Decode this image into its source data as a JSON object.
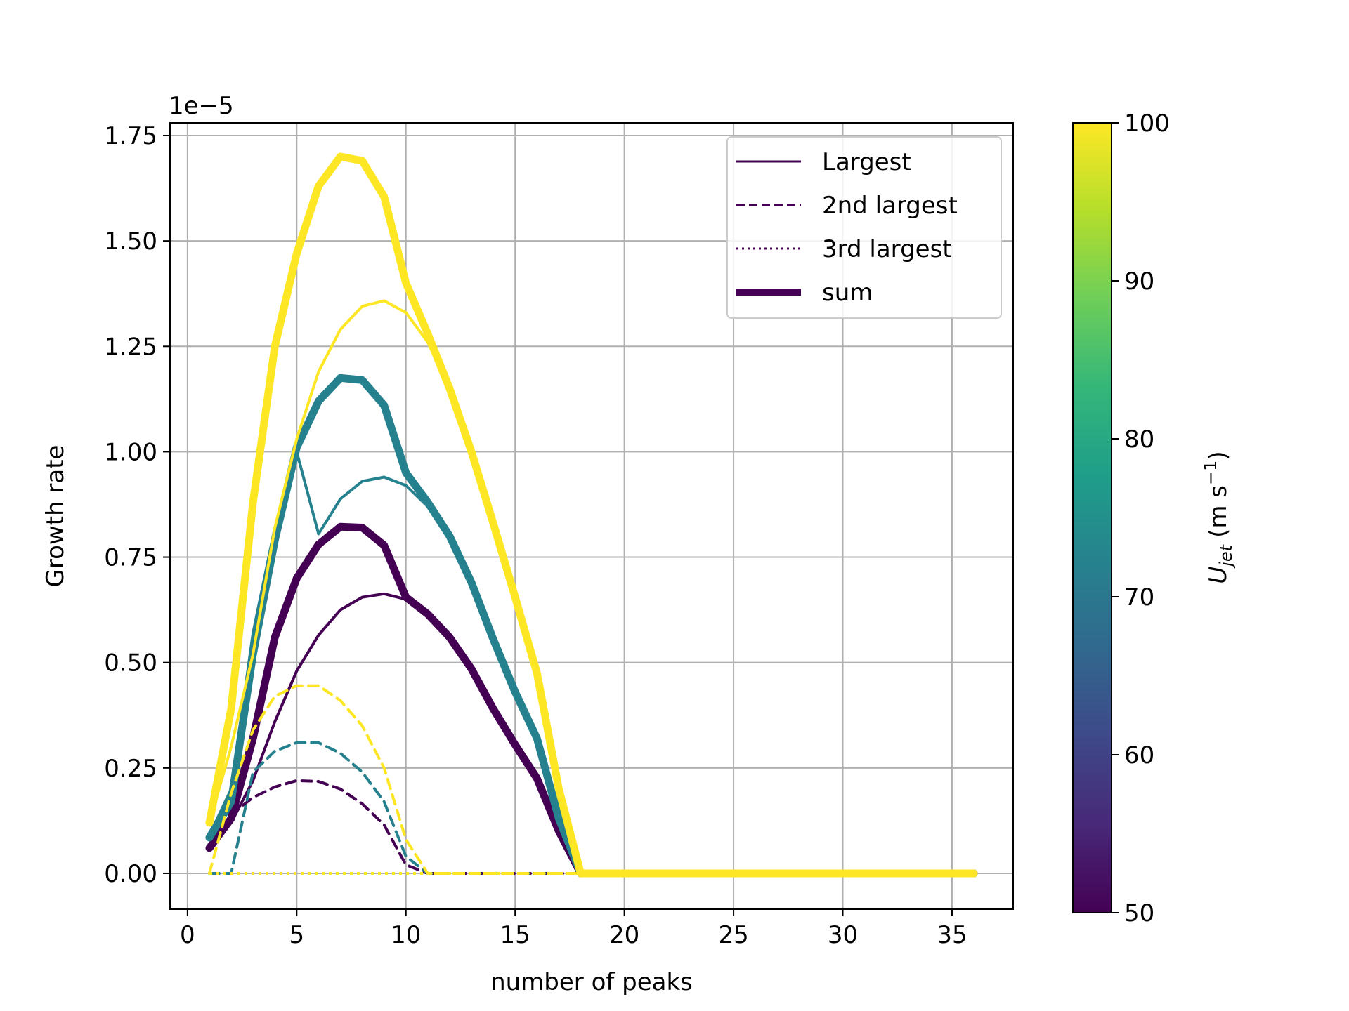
{
  "chart_data": {
    "type": "line",
    "title": "",
    "xlabel": "number of peaks",
    "ylabel": "Growth rate",
    "y_offset_label": "1e−5",
    "xlim": [
      -0.8,
      37.8
    ],
    "ylim": [
      -0.085,
      1.78
    ],
    "xticks": [
      0,
      5,
      10,
      15,
      20,
      25,
      30,
      35
    ],
    "xtick_labels": [
      "0",
      "5",
      "10",
      "15",
      "20",
      "25",
      "30",
      "35"
    ],
    "yticks": [
      0,
      0.25,
      0.5,
      0.75,
      1.0,
      1.25,
      1.5,
      1.75
    ],
    "ytick_labels": [
      "0.00",
      "0.25",
      "0.50",
      "0.75",
      "1.00",
      "1.25",
      "1.50",
      "1.75"
    ],
    "grid": true,
    "legend_position": "top-right",
    "legend": [
      {
        "label": "Largest",
        "style": "solid"
      },
      {
        "label": "2nd largest",
        "style": "dashed"
      },
      {
        "label": "3rd largest",
        "style": "dotted"
      },
      {
        "label": "sum",
        "style": "thick"
      }
    ],
    "colorbar": {
      "label_main": "U",
      "label_sub": "jet",
      "label_units": "(m s",
      "label_exp": "−1",
      "label_close": ")",
      "min": 50,
      "max": 100,
      "ticks": [
        50,
        60,
        70,
        80,
        90,
        100
      ],
      "tick_labels": [
        "50",
        "60",
        "70",
        "80",
        "90",
        "100"
      ],
      "colormap": [
        "#440154",
        "#482878",
        "#3e4989",
        "#31688e",
        "#26828e",
        "#1f9e89",
        "#35b779",
        "#6ece58",
        "#b5de2b",
        "#fde725"
      ]
    },
    "x": [
      1,
      2,
      3,
      4,
      5,
      6,
      7,
      8,
      9,
      10,
      11,
      12,
      13,
      14,
      15,
      16,
      17,
      18,
      19,
      20,
      21,
      22,
      23,
      24,
      25,
      26,
      27,
      28,
      29,
      30,
      31,
      32,
      33,
      34,
      35,
      36
    ],
    "series": [
      {
        "ujet": 50,
        "style": "solid",
        "color": "#440154",
        "values": [
          0.07,
          0.12,
          0.22,
          0.36,
          0.48,
          0.565,
          0.625,
          0.655,
          0.663,
          0.65,
          0.615,
          0.56,
          0.485,
          0.39,
          0.305,
          0.225,
          0.1,
          0.0,
          0,
          0,
          0,
          0,
          0,
          0,
          0,
          0,
          0,
          0,
          0,
          0,
          0,
          0,
          0,
          0,
          0,
          0
        ]
      },
      {
        "ujet": 50,
        "style": "dashed",
        "color": "#440154",
        "values": [
          0.08,
          0.14,
          0.18,
          0.205,
          0.22,
          0.218,
          0.2,
          0.165,
          0.115,
          0.02,
          0.0,
          0,
          0,
          0,
          0,
          0,
          0,
          0,
          0,
          0,
          0,
          0,
          0,
          0,
          0,
          0,
          0,
          0,
          0,
          0,
          0,
          0,
          0,
          0,
          0,
          0
        ]
      },
      {
        "ujet": 50,
        "style": "dotted",
        "color": "#440154",
        "values": [
          0,
          0,
          0,
          0,
          0,
          0,
          0,
          0,
          0,
          0,
          0,
          0,
          0,
          0,
          0,
          0,
          0,
          0,
          0,
          0,
          0,
          0,
          0,
          0,
          0,
          0,
          0,
          0,
          0,
          0,
          0,
          0,
          0,
          0,
          0,
          0
        ]
      },
      {
        "ujet": 50,
        "style": "thick",
        "color": "#440154",
        "values": [
          0.06,
          0.13,
          0.32,
          0.56,
          0.7,
          0.78,
          0.822,
          0.82,
          0.778,
          0.655,
          0.615,
          0.56,
          0.485,
          0.39,
          0.305,
          0.225,
          0.1,
          0.0,
          0,
          0,
          0,
          0,
          0,
          0,
          0,
          0,
          0,
          0,
          0,
          0,
          0,
          0,
          0,
          0,
          0,
          0
        ]
      },
      {
        "ujet": 72,
        "style": "solid",
        "color": "#26818e",
        "values": [
          0.09,
          0.2,
          0.57,
          0.82,
          1.0,
          0.805,
          0.888,
          0.93,
          0.94,
          0.92,
          0.87,
          0.8,
          0.69,
          0.555,
          0.43,
          0.32,
          0.13,
          0.0,
          0,
          0,
          0,
          0,
          0,
          0,
          0,
          0,
          0,
          0,
          0,
          0,
          0,
          0,
          0,
          0,
          0,
          0
        ]
      },
      {
        "ujet": 72,
        "style": "dashed",
        "color": "#26818e",
        "values": [
          0.0,
          0.0,
          0.24,
          0.29,
          0.31,
          0.31,
          0.285,
          0.24,
          0.17,
          0.04,
          0.0,
          0,
          0,
          0,
          0,
          0,
          0,
          0,
          0,
          0,
          0,
          0,
          0,
          0,
          0,
          0,
          0,
          0,
          0,
          0,
          0,
          0,
          0,
          0,
          0,
          0
        ]
      },
      {
        "ujet": 72,
        "style": "dotted",
        "color": "#26818e",
        "values": [
          0,
          0,
          0,
          0,
          0,
          0,
          0,
          0,
          0,
          0,
          0,
          0,
          0,
          0,
          0,
          0,
          0,
          0,
          0,
          0,
          0,
          0,
          0,
          0,
          0,
          0,
          0,
          0,
          0,
          0,
          0,
          0,
          0,
          0,
          0,
          0
        ]
      },
      {
        "ujet": 72,
        "style": "thick",
        "color": "#26818e",
        "values": [
          0.085,
          0.17,
          0.52,
          0.79,
          1.01,
          1.12,
          1.175,
          1.17,
          1.11,
          0.95,
          0.88,
          0.8,
          0.69,
          0.555,
          0.43,
          0.32,
          0.13,
          0.0,
          0,
          0,
          0,
          0,
          0,
          0,
          0,
          0,
          0,
          0,
          0,
          0,
          0,
          0,
          0,
          0,
          0,
          0
        ]
      },
      {
        "ujet": 100,
        "style": "solid",
        "color": "#fde725",
        "values": [
          0.12,
          0.3,
          0.52,
          0.82,
          1.03,
          1.19,
          1.29,
          1.345,
          1.358,
          1.33,
          1.26,
          1.15,
          1.0,
          0.83,
          0.655,
          0.475,
          0.2,
          0.0,
          0,
          0,
          0,
          0,
          0,
          0,
          0,
          0,
          0,
          0,
          0,
          0,
          0,
          0,
          0,
          0,
          0,
          0
        ]
      },
      {
        "ujet": 100,
        "style": "dashed",
        "color": "#fde725",
        "values": [
          0.0,
          0.19,
          0.34,
          0.42,
          0.445,
          0.445,
          0.41,
          0.35,
          0.25,
          0.08,
          0.0,
          0,
          0,
          0,
          0,
          0,
          0,
          0,
          0,
          0,
          0,
          0,
          0,
          0,
          0,
          0,
          0,
          0,
          0,
          0,
          0,
          0,
          0,
          0,
          0,
          0
        ]
      },
      {
        "ujet": 100,
        "style": "dotted",
        "color": "#fde725",
        "values": [
          0,
          0,
          0,
          0,
          0,
          0,
          0,
          0,
          0,
          0,
          0,
          0,
          0,
          0,
          0,
          0,
          0,
          0,
          0,
          0,
          0,
          0,
          0,
          0,
          0,
          0,
          0,
          0,
          0,
          0,
          0,
          0,
          0,
          0,
          0,
          0
        ]
      },
      {
        "ujet": 100,
        "style": "thick",
        "color": "#fde725",
        "values": [
          0.12,
          0.39,
          0.88,
          1.25,
          1.47,
          1.63,
          1.7,
          1.69,
          1.605,
          1.4,
          1.28,
          1.15,
          1.0,
          0.83,
          0.655,
          0.475,
          0.2,
          0.0,
          0,
          0,
          0,
          0,
          0,
          0,
          0,
          0,
          0,
          0,
          0,
          0,
          0,
          0,
          0,
          0,
          0,
          0
        ]
      }
    ]
  }
}
